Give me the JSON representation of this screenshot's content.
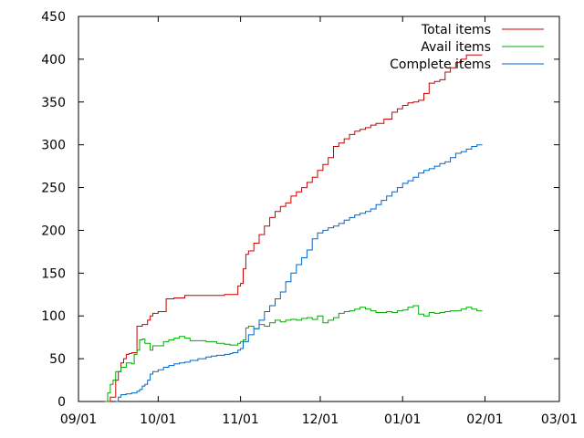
{
  "chart_data": {
    "type": "line",
    "title": "",
    "xlabel": "",
    "ylabel": "",
    "grid": false,
    "legend_position": "top-right",
    "x_ticks": [
      "09/01",
      "10/01",
      "11/01",
      "12/01",
      "01/01",
      "02/01",
      "03/01"
    ],
    "x_tick_positions": [
      0,
      30,
      61,
      91,
      122,
      153,
      181
    ],
    "xlim": [
      0,
      181
    ],
    "y_ticks": [
      0,
      50,
      100,
      150,
      200,
      250,
      300,
      350,
      400,
      450
    ],
    "ylim": [
      0,
      450
    ],
    "series": [
      {
        "name": "Total items",
        "color": "#cc0000",
        "x": [
          10,
          12,
          14,
          15,
          16,
          17,
          18,
          19,
          20,
          22,
          24,
          26,
          27,
          28,
          30,
          33,
          36,
          40,
          45,
          50,
          55,
          60,
          61,
          62,
          63,
          64,
          66,
          68,
          70,
          72,
          74,
          76,
          78,
          80,
          82,
          84,
          86,
          88,
          90,
          92,
          94,
          96,
          98,
          100,
          102,
          104,
          106,
          108,
          110,
          112,
          115,
          118,
          120,
          122,
          124,
          126,
          128,
          130,
          132,
          134,
          136,
          138,
          140,
          142,
          144,
          146,
          148,
          150,
          152
        ],
        "y": [
          0,
          5,
          25,
          35,
          45,
          50,
          55,
          56,
          57,
          88,
          90,
          95,
          100,
          103,
          105,
          120,
          121,
          124,
          124,
          124,
          125,
          135,
          138,
          155,
          172,
          176,
          185,
          195,
          205,
          215,
          222,
          228,
          232,
          240,
          245,
          250,
          256,
          262,
          270,
          277,
          285,
          298,
          302,
          307,
          312,
          316,
          318,
          320,
          323,
          325,
          330,
          338,
          342,
          346,
          349,
          350,
          352,
          360,
          372,
          374,
          376,
          385,
          390,
          396,
          400,
          405,
          405,
          405,
          405
        ]
      },
      {
        "name": "Avail items",
        "color": "#00aa00",
        "x": [
          10,
          11,
          12,
          13,
          14,
          16,
          18,
          20,
          21,
          22,
          23,
          24,
          25,
          27,
          28,
          30,
          32,
          34,
          36,
          38,
          40,
          42,
          45,
          48,
          50,
          52,
          55,
          57,
          58,
          60,
          61,
          62,
          63,
          64,
          66,
          68,
          70,
          72,
          74,
          76,
          78,
          80,
          82,
          84,
          86,
          88,
          90,
          92,
          94,
          96,
          98,
          100,
          102,
          104,
          106,
          108,
          110,
          112,
          114,
          116,
          118,
          120,
          122,
          124,
          126,
          128,
          130,
          132,
          134,
          136,
          138,
          140,
          142,
          144,
          146,
          148,
          150,
          152
        ],
        "y": [
          0,
          10,
          20,
          25,
          35,
          40,
          45,
          44,
          55,
          60,
          72,
          73,
          68,
          60,
          65,
          65,
          70,
          72,
          74,
          76,
          74,
          71,
          71,
          70,
          70,
          68,
          67,
          66,
          66,
          68,
          70,
          72,
          86,
          88,
          85,
          90,
          88,
          92,
          95,
          93,
          95,
          96,
          95,
          97,
          98,
          96,
          100,
          92,
          95,
          98,
          103,
          105,
          106,
          108,
          110,
          108,
          106,
          104,
          104,
          105,
          104,
          106,
          107,
          110,
          112,
          102,
          100,
          104,
          103,
          104,
          105,
          106,
          106,
          108,
          110,
          108,
          106,
          106
        ]
      },
      {
        "name": "Complete items",
        "color": "#0066cc",
        "x": [
          14,
          15,
          16,
          18,
          20,
          22,
          23,
          24,
          25,
          26,
          27,
          28,
          30,
          32,
          34,
          36,
          38,
          40,
          42,
          45,
          48,
          50,
          52,
          55,
          57,
          58,
          60,
          61,
          62,
          64,
          66,
          68,
          70,
          72,
          74,
          76,
          78,
          80,
          82,
          84,
          86,
          88,
          90,
          92,
          94,
          96,
          98,
          100,
          102,
          104,
          106,
          108,
          110,
          112,
          114,
          116,
          118,
          120,
          122,
          124,
          126,
          128,
          130,
          132,
          134,
          136,
          138,
          140,
          142,
          144,
          146,
          148,
          150,
          152
        ],
        "y": [
          0,
          5,
          8,
          9,
          10,
          12,
          14,
          18,
          20,
          25,
          32,
          35,
          37,
          40,
          42,
          44,
          45,
          46,
          48,
          50,
          52,
          53,
          54,
          55,
          56,
          57,
          60,
          62,
          70,
          78,
          85,
          95,
          105,
          112,
          120,
          128,
          140,
          150,
          160,
          168,
          177,
          190,
          197,
          200,
          203,
          205,
          208,
          212,
          215,
          218,
          220,
          222,
          225,
          230,
          235,
          240,
          245,
          250,
          255,
          258,
          262,
          267,
          270,
          272,
          275,
          278,
          280,
          285,
          290,
          292,
          295,
          298,
          300,
          300
        ]
      }
    ]
  }
}
